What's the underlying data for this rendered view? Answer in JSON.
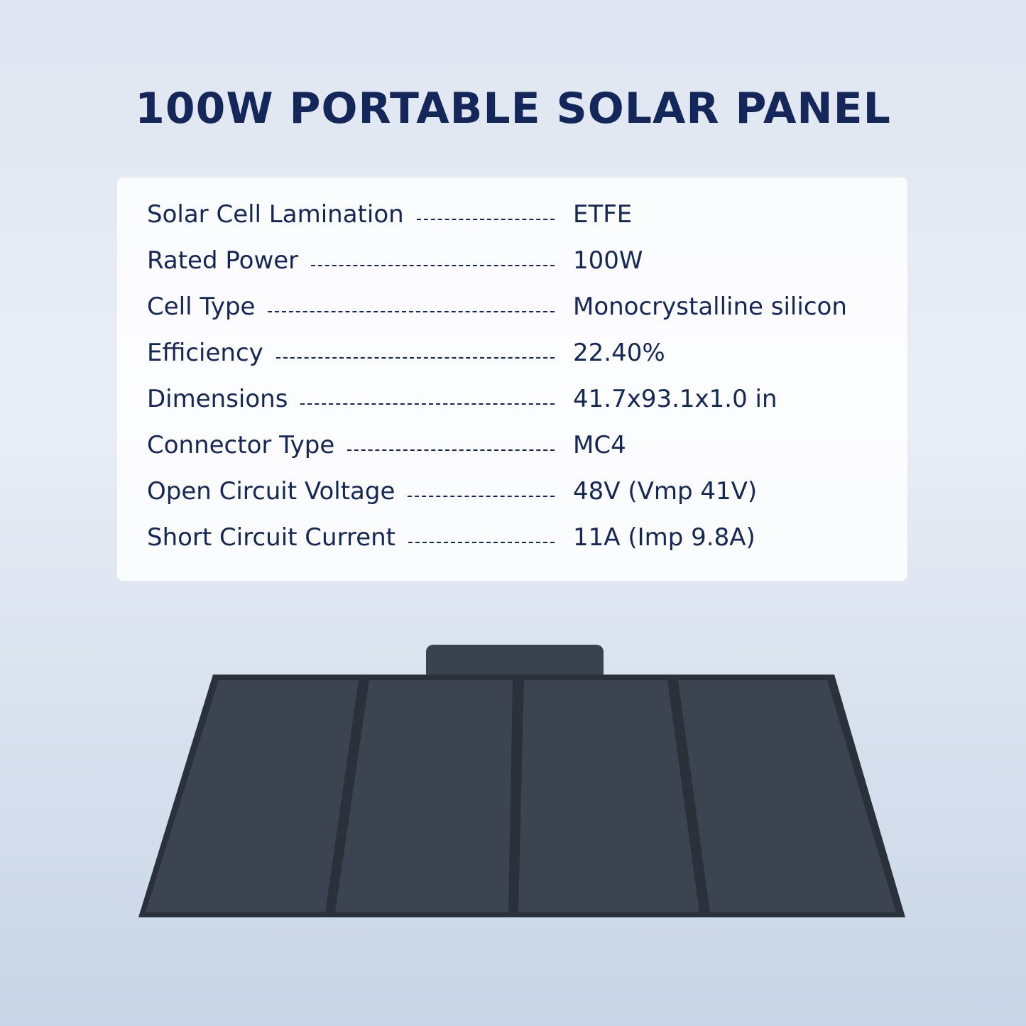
{
  "header": {
    "title": "100W PORTABLE SOLAR PANEL"
  },
  "specs": [
    {
      "label": "Solar Cell Lamination",
      "value": "ETFE"
    },
    {
      "label": "Rated Power",
      "value": "100W"
    },
    {
      "label": "Cell Type",
      "value": "Monocrystalline silicon"
    },
    {
      "label": "Efficiency",
      "value": "22.40%"
    },
    {
      "label": "Dimensions",
      "value": "41.7x93.1x1.0 in"
    },
    {
      "label": "Connector Type",
      "value": "MC4"
    },
    {
      "label": "Open Circuit Voltage",
      "value": "48V (Vmp 41V)"
    },
    {
      "label": "Short Circuit Current",
      "value": "11A (Imp 9.8A)"
    }
  ]
}
